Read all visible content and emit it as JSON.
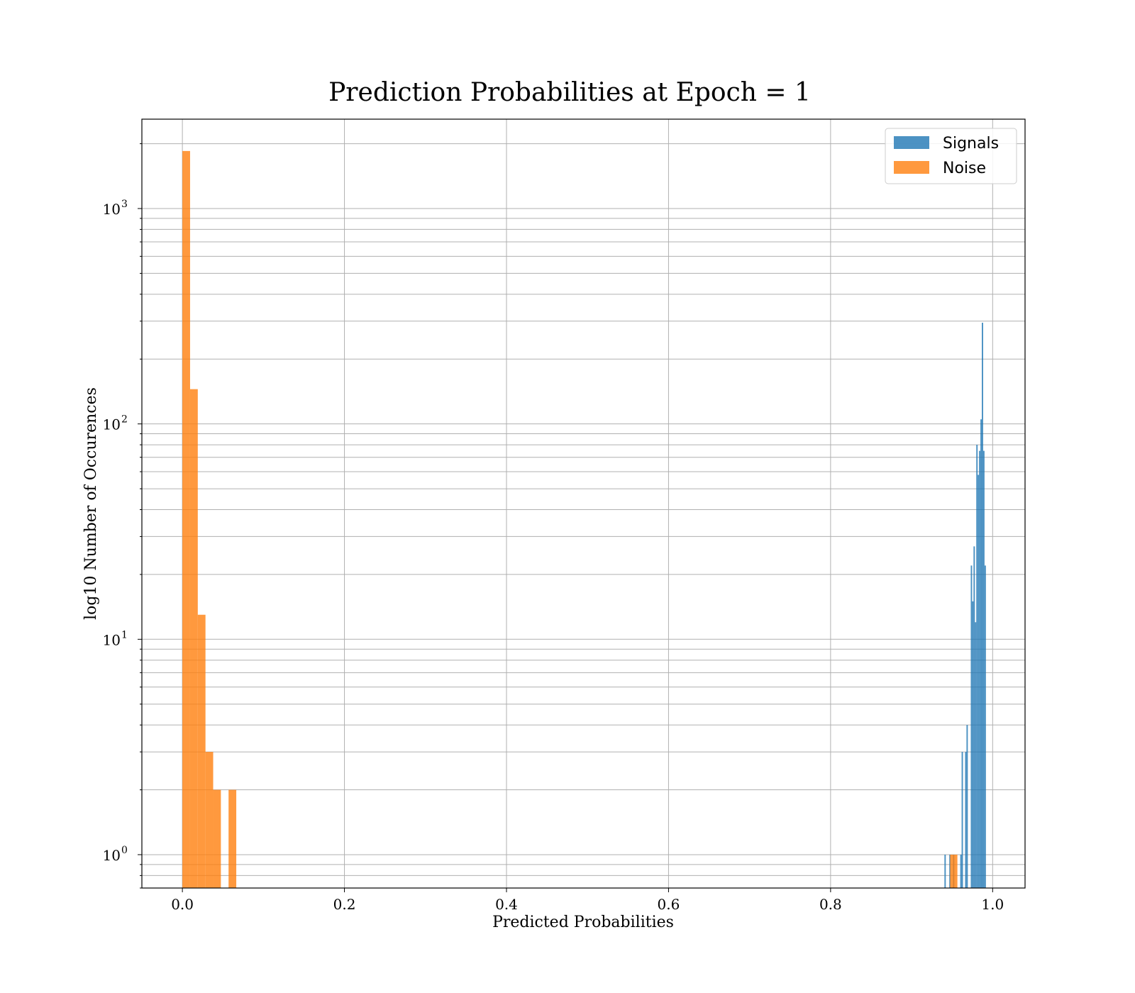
{
  "chart_data": {
    "type": "bar",
    "title": "Prediction Probabilities at Epoch = 1",
    "xlabel": "Predicted Probabilities",
    "ylabel": "log10 Number of Occurences",
    "yscale": "log",
    "xlim": [
      -0.05,
      1.04
    ],
    "ylim": [
      0.7,
      2600
    ],
    "grid": true,
    "legend_position": "top-right",
    "x_ticks": [
      0.0,
      0.2,
      0.4,
      0.6,
      0.8,
      1.0
    ],
    "x_tick_labels": [
      "0.0",
      "0.2",
      "0.4",
      "0.6",
      "0.8",
      "1.0"
    ],
    "y_ticks": [
      1,
      10,
      100,
      1000
    ],
    "y_tick_labels": [
      {
        "base": "10",
        "exp": "0"
      },
      {
        "base": "10",
        "exp": "1"
      },
      {
        "base": "10",
        "exp": "2"
      },
      {
        "base": "10",
        "exp": "3"
      }
    ],
    "series": [
      {
        "name": "Signals",
        "color": "#1f77b4",
        "bins": [
          {
            "x0": 0.9405,
            "x1": 0.9422,
            "count": 1
          },
          {
            "x0": 0.9465,
            "x1": 0.9482,
            "count": 1
          },
          {
            "x0": 0.951,
            "x1": 0.9527,
            "count": 1
          },
          {
            "x0": 0.96,
            "x1": 0.9617,
            "count": 1
          },
          {
            "x0": 0.9617,
            "x1": 0.9634,
            "count": 3
          },
          {
            "x0": 0.966,
            "x1": 0.9677,
            "count": 3
          },
          {
            "x0": 0.9677,
            "x1": 0.9694,
            "count": 4
          },
          {
            "x0": 0.973,
            "x1": 0.9747,
            "count": 22
          },
          {
            "x0": 0.9747,
            "x1": 0.9764,
            "count": 15
          },
          {
            "x0": 0.9764,
            "x1": 0.9781,
            "count": 27
          },
          {
            "x0": 0.9781,
            "x1": 0.9798,
            "count": 12
          },
          {
            "x0": 0.9798,
            "x1": 0.9815,
            "count": 80
          },
          {
            "x0": 0.9815,
            "x1": 0.9832,
            "count": 58
          },
          {
            "x0": 0.9832,
            "x1": 0.9849,
            "count": 75
          },
          {
            "x0": 0.9849,
            "x1": 0.9866,
            "count": 105
          },
          {
            "x0": 0.9866,
            "x1": 0.9883,
            "count": 295
          },
          {
            "x0": 0.9883,
            "x1": 0.99,
            "count": 75
          },
          {
            "x0": 0.99,
            "x1": 0.9917,
            "count": 22
          }
        ]
      },
      {
        "name": "Noise",
        "color": "#ff7f0e",
        "bins": [
          {
            "x0": 0.0,
            "x1": 0.0095,
            "count": 1850
          },
          {
            "x0": 0.0095,
            "x1": 0.019,
            "count": 145
          },
          {
            "x0": 0.019,
            "x1": 0.0285,
            "count": 13
          },
          {
            "x0": 0.0285,
            "x1": 0.038,
            "count": 3
          },
          {
            "x0": 0.038,
            "x1": 0.0475,
            "count": 2
          },
          {
            "x0": 0.0475,
            "x1": 0.057,
            "count": 0
          },
          {
            "x0": 0.057,
            "x1": 0.0665,
            "count": 2
          },
          {
            "x0": 0.9475,
            "x1": 0.9565,
            "count": 1
          }
        ]
      }
    ]
  }
}
